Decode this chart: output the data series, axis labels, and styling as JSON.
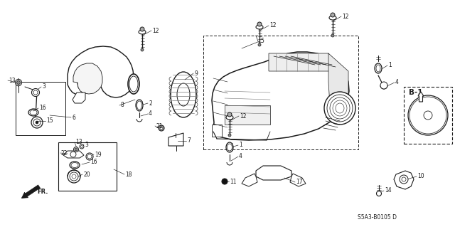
{
  "bg_color": "#ffffff",
  "line_color": "#1a1a1a",
  "diagram_code": "S5A3-B0105 D",
  "figsize": [
    6.4,
    3.19
  ],
  "dpi": 100,
  "gray": "#777777",
  "dark": "#111111",
  "mid": "#555555"
}
